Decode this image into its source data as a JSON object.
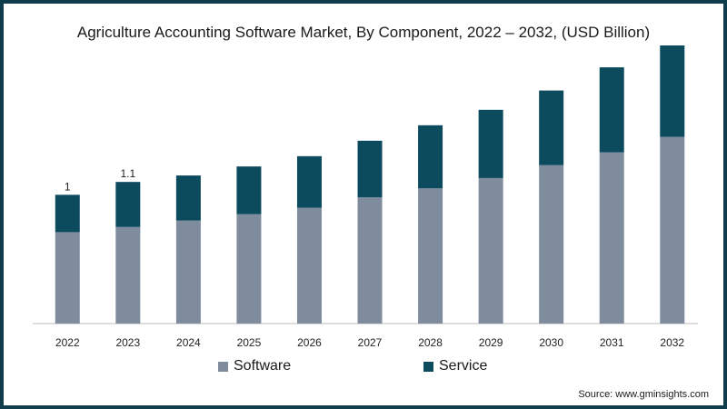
{
  "chart_data": {
    "type": "bar",
    "stacked": true,
    "title": "Agriculture Accounting Software Market, By Component, 2022 – 2032, (USD Billion)",
    "xlabel": "",
    "ylabel": "",
    "categories": [
      "2022",
      "2023",
      "2024",
      "2025",
      "2026",
      "2027",
      "2028",
      "2029",
      "2030",
      "2031",
      "2032"
    ],
    "series": [
      {
        "name": "Software",
        "color": "#7f8c9e",
        "values": [
          0.71,
          0.75,
          0.8,
          0.85,
          0.9,
          0.98,
          1.05,
          1.13,
          1.23,
          1.33,
          1.45
        ]
      },
      {
        "name": "Service",
        "color": "#0c4a5e",
        "values": [
          0.29,
          0.35,
          0.35,
          0.37,
          0.4,
          0.44,
          0.49,
          0.53,
          0.58,
          0.66,
          0.71
        ]
      }
    ],
    "data_labels": [
      "1",
      "1.1",
      "",
      "",
      "",
      "",
      "",
      "",
      "",
      "",
      ""
    ],
    "ylim": [
      0,
      2.16
    ],
    "grid": false,
    "legend": "bottom-center"
  },
  "source": "Source: www.gminsights.com"
}
